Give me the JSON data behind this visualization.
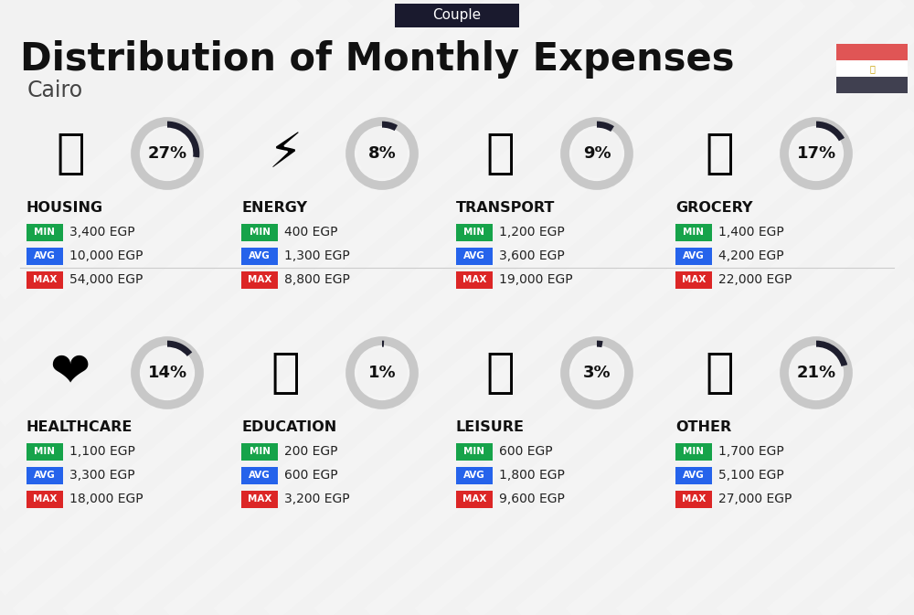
{
  "title": "Distribution of Monthly Expenses",
  "subtitle": "Cairo",
  "tag": "Couple",
  "bg_color": "#f2f2f2",
  "categories": [
    {
      "name": "HOUSING",
      "percent": 27,
      "icon": "🏗",
      "min": "3,400 EGP",
      "avg": "10,000 EGP",
      "max": "54,000 EGP",
      "row": 0,
      "col": 0
    },
    {
      "name": "ENERGY",
      "percent": 8,
      "icon": "⚡",
      "min": "400 EGP",
      "avg": "1,300 EGP",
      "max": "8,800 EGP",
      "row": 0,
      "col": 1
    },
    {
      "name": "TRANSPORT",
      "percent": 9,
      "icon": "🚌",
      "min": "1,200 EGP",
      "avg": "3,600 EGP",
      "max": "19,000 EGP",
      "row": 0,
      "col": 2
    },
    {
      "name": "GROCERY",
      "percent": 17,
      "icon": "🛒",
      "min": "1,400 EGP",
      "avg": "4,200 EGP",
      "max": "22,000 EGP",
      "row": 0,
      "col": 3
    },
    {
      "name": "HEALTHCARE",
      "percent": 14,
      "icon": "❤️",
      "min": "1,100 EGP",
      "avg": "3,300 EGP",
      "max": "18,000 EGP",
      "row": 1,
      "col": 0
    },
    {
      "name": "EDUCATION",
      "percent": 1,
      "icon": "🎓",
      "min": "200 EGP",
      "avg": "600 EGP",
      "max": "3,200 EGP",
      "row": 1,
      "col": 1
    },
    {
      "name": "LEISURE",
      "percent": 3,
      "icon": "🛍",
      "min": "600 EGP",
      "avg": "1,800 EGP",
      "max": "9,600 EGP",
      "row": 1,
      "col": 2
    },
    {
      "name": "OTHER",
      "percent": 21,
      "icon": "👜",
      "min": "1,700 EGP",
      "avg": "5,100 EGP",
      "max": "27,000 EGP",
      "row": 1,
      "col": 3
    }
  ],
  "color_min": "#16a34a",
  "color_avg": "#2563eb",
  "color_max": "#dc2626",
  "donut_dark": "#1e1e2e",
  "donut_light": "#c8c8c8",
  "flag_red": "#e05555",
  "flag_white": "#ffffff",
  "flag_dark": "#404050",
  "tag_bg": "#1a1a2e",
  "stripe_color": "#ffffff",
  "title_color": "#111111",
  "subtitle_color": "#444444",
  "label_color": "#111111"
}
